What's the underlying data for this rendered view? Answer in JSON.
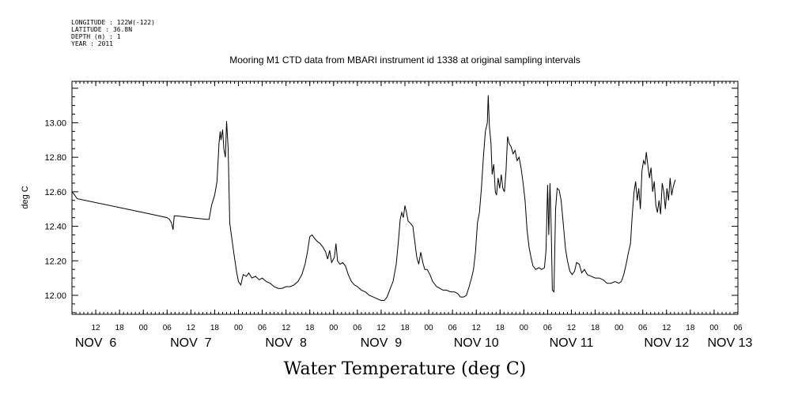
{
  "header_lines": [
    "LONGITUDE : 122W(-122)",
    "LATITUDE : 36.8N",
    "DEPTH (m) : 1",
    "YEAR : 2011"
  ],
  "chart_data": {
    "type": "line",
    "title": "Mooring M1 CTD data from MBARI instrument id 1338 at original sampling intervals",
    "xlabel": "Water Temperature (deg C)",
    "ylabel": "deg C",
    "x_unit": "hours since Nov 6 00:00 (2011)",
    "xlim": [
      6,
      174
    ],
    "ylim": [
      11.89,
      13.24
    ],
    "yticks": [
      12.0,
      12.2,
      12.4,
      12.6,
      12.8,
      13.0
    ],
    "ytick_labels": [
      "12.00",
      "12.20",
      "12.40",
      "12.60",
      "12.80",
      "13.00"
    ],
    "hour_ticks": [
      {
        "x": 12,
        "label": "12"
      },
      {
        "x": 18,
        "label": "18"
      },
      {
        "x": 24,
        "label": "00"
      },
      {
        "x": 30,
        "label": "06"
      },
      {
        "x": 36,
        "label": "12"
      },
      {
        "x": 42,
        "label": "18"
      },
      {
        "x": 48,
        "label": "00"
      },
      {
        "x": 54,
        "label": "06"
      },
      {
        "x": 60,
        "label": "12"
      },
      {
        "x": 66,
        "label": "18"
      },
      {
        "x": 72,
        "label": "00"
      },
      {
        "x": 78,
        "label": "06"
      },
      {
        "x": 84,
        "label": "12"
      },
      {
        "x": 90,
        "label": "18"
      },
      {
        "x": 96,
        "label": "00"
      },
      {
        "x": 102,
        "label": "06"
      },
      {
        "x": 108,
        "label": "12"
      },
      {
        "x": 114,
        "label": "18"
      },
      {
        "x": 120,
        "label": "00"
      },
      {
        "x": 126,
        "label": "06"
      },
      {
        "x": 132,
        "label": "12"
      },
      {
        "x": 138,
        "label": "18"
      },
      {
        "x": 144,
        "label": "00"
      },
      {
        "x": 150,
        "label": "06"
      },
      {
        "x": 156,
        "label": "12"
      },
      {
        "x": 162,
        "label": "18"
      },
      {
        "x": 168,
        "label": "00"
      },
      {
        "x": 174,
        "label": "06"
      }
    ],
    "day_labels": [
      {
        "x": 12,
        "label": "NOV  6"
      },
      {
        "x": 36,
        "label": "NOV  7"
      },
      {
        "x": 60,
        "label": "NOV  8"
      },
      {
        "x": 84,
        "label": "NOV  9"
      },
      {
        "x": 108,
        "label": "NOV 10"
      },
      {
        "x": 132,
        "label": "NOV 11"
      },
      {
        "x": 156,
        "label": "NOV 12"
      },
      {
        "x": 172,
        "label": "NOV 13"
      }
    ],
    "series": [
      {
        "color": "#000000",
        "points": [
          [
            6.0,
            12.6
          ],
          [
            6.4,
            12.59
          ],
          [
            7.3,
            12.56
          ],
          [
            24.0,
            12.48
          ],
          [
            30.0,
            12.45
          ],
          [
            30.6,
            12.44
          ],
          [
            31.1,
            12.42
          ],
          [
            31.5,
            12.38
          ],
          [
            31.8,
            12.46
          ],
          [
            32.5,
            12.46
          ],
          [
            36.0,
            12.45
          ],
          [
            40.0,
            12.44
          ],
          [
            40.6,
            12.44
          ],
          [
            41.2,
            12.52
          ],
          [
            42.0,
            12.58
          ],
          [
            42.6,
            12.66
          ],
          [
            43.1,
            12.88
          ],
          [
            43.4,
            12.95
          ],
          [
            43.6,
            12.9
          ],
          [
            44.0,
            12.96
          ],
          [
            44.3,
            12.85
          ],
          [
            44.7,
            12.8
          ],
          [
            45.0,
            13.01
          ],
          [
            45.4,
            12.85
          ],
          [
            45.8,
            12.42
          ],
          [
            46.2,
            12.35
          ],
          [
            46.8,
            12.25
          ],
          [
            47.5,
            12.14
          ],
          [
            48.0,
            12.08
          ],
          [
            48.6,
            12.06
          ],
          [
            49.2,
            12.12
          ],
          [
            50.0,
            12.11
          ],
          [
            50.6,
            12.13
          ],
          [
            51.4,
            12.1
          ],
          [
            52.3,
            12.11
          ],
          [
            53.2,
            12.09
          ],
          [
            54.0,
            12.1
          ],
          [
            55.0,
            12.08
          ],
          [
            56.0,
            12.07
          ],
          [
            57.0,
            12.05
          ],
          [
            58.0,
            12.04
          ],
          [
            59.0,
            12.04
          ],
          [
            60.0,
            12.05
          ],
          [
            61.0,
            12.05
          ],
          [
            62.0,
            12.06
          ],
          [
            63.0,
            12.08
          ],
          [
            64.0,
            12.12
          ],
          [
            64.8,
            12.18
          ],
          [
            65.4,
            12.25
          ],
          [
            66.0,
            12.34
          ],
          [
            66.6,
            12.35
          ],
          [
            67.2,
            12.33
          ],
          [
            68.0,
            12.31
          ],
          [
            68.6,
            12.3
          ],
          [
            69.3,
            12.28
          ],
          [
            70.0,
            12.25
          ],
          [
            70.5,
            12.21
          ],
          [
            71.0,
            12.26
          ],
          [
            71.5,
            12.19
          ],
          [
            72.2,
            12.22
          ],
          [
            72.6,
            12.3
          ],
          [
            73.0,
            12.2
          ],
          [
            73.6,
            12.18
          ],
          [
            74.3,
            12.19
          ],
          [
            75.0,
            12.17
          ],
          [
            75.7,
            12.12
          ],
          [
            76.5,
            12.08
          ],
          [
            77.3,
            12.06
          ],
          [
            78.0,
            12.05
          ],
          [
            79.0,
            12.03
          ],
          [
            80.0,
            12.02
          ],
          [
            81.0,
            12.0
          ],
          [
            82.0,
            11.99
          ],
          [
            83.0,
            11.98
          ],
          [
            84.0,
            11.97
          ],
          [
            84.8,
            11.97
          ],
          [
            85.5,
            11.99
          ],
          [
            86.3,
            12.04
          ],
          [
            87.0,
            12.08
          ],
          [
            87.8,
            12.18
          ],
          [
            88.3,
            12.3
          ],
          [
            88.8,
            12.44
          ],
          [
            89.2,
            12.48
          ],
          [
            89.6,
            12.45
          ],
          [
            90.0,
            12.52
          ],
          [
            90.4,
            12.48
          ],
          [
            90.8,
            12.43
          ],
          [
            91.3,
            12.42
          ],
          [
            92.0,
            12.4
          ],
          [
            92.5,
            12.31
          ],
          [
            93.0,
            12.22
          ],
          [
            93.5,
            12.18
          ],
          [
            94.0,
            12.25
          ],
          [
            94.5,
            12.19
          ],
          [
            95.0,
            12.15
          ],
          [
            95.6,
            12.15
          ],
          [
            96.3,
            12.12
          ],
          [
            97.0,
            12.08
          ],
          [
            98.0,
            12.05
          ],
          [
            98.8,
            12.04
          ],
          [
            99.6,
            12.03
          ],
          [
            100.5,
            12.03
          ],
          [
            101.5,
            12.02
          ],
          [
            102.5,
            12.02
          ],
          [
            103.3,
            12.01
          ],
          [
            104.0,
            11.99
          ],
          [
            104.8,
            11.99
          ],
          [
            105.5,
            12.0
          ],
          [
            106.2,
            12.05
          ],
          [
            106.8,
            12.1
          ],
          [
            107.3,
            12.15
          ],
          [
            107.8,
            12.25
          ],
          [
            108.3,
            12.42
          ],
          [
            108.8,
            12.48
          ],
          [
            109.3,
            12.62
          ],
          [
            109.8,
            12.8
          ],
          [
            110.3,
            12.95
          ],
          [
            110.8,
            13.0
          ],
          [
            111.0,
            13.16
          ],
          [
            111.3,
            12.98
          ],
          [
            111.7,
            12.88
          ],
          [
            112.0,
            12.7
          ],
          [
            112.4,
            12.76
          ],
          [
            112.8,
            12.6
          ],
          [
            113.1,
            12.58
          ],
          [
            113.5,
            12.68
          ],
          [
            113.9,
            12.62
          ],
          [
            114.3,
            12.7
          ],
          [
            114.7,
            12.62
          ],
          [
            115.1,
            12.6
          ],
          [
            115.5,
            12.72
          ],
          [
            115.9,
            12.92
          ],
          [
            116.3,
            12.88
          ],
          [
            116.8,
            12.86
          ],
          [
            117.3,
            12.82
          ],
          [
            117.8,
            12.84
          ],
          [
            118.3,
            12.78
          ],
          [
            118.8,
            12.8
          ],
          [
            119.3,
            12.74
          ],
          [
            119.8,
            12.65
          ],
          [
            120.3,
            12.55
          ],
          [
            120.8,
            12.38
          ],
          [
            121.3,
            12.28
          ],
          [
            121.8,
            12.22
          ],
          [
            122.3,
            12.17
          ],
          [
            123.0,
            12.15
          ],
          [
            123.8,
            12.16
          ],
          [
            124.5,
            12.15
          ],
          [
            125.2,
            12.16
          ],
          [
            125.6,
            12.26
          ],
          [
            126.0,
            12.64
          ],
          [
            126.3,
            12.35
          ],
          [
            126.6,
            12.65
          ],
          [
            126.9,
            12.4
          ],
          [
            127.2,
            12.03
          ],
          [
            127.6,
            12.02
          ],
          [
            128.0,
            12.5
          ],
          [
            128.4,
            12.62
          ],
          [
            128.9,
            12.61
          ],
          [
            129.4,
            12.55
          ],
          [
            130.0,
            12.4
          ],
          [
            130.5,
            12.27
          ],
          [
            131.0,
            12.2
          ],
          [
            131.6,
            12.14
          ],
          [
            132.2,
            12.12
          ],
          [
            132.8,
            12.14
          ],
          [
            133.3,
            12.19
          ],
          [
            134.0,
            12.18
          ],
          [
            134.6,
            12.13
          ],
          [
            135.3,
            12.15
          ],
          [
            136.0,
            12.12
          ],
          [
            137.0,
            12.11
          ],
          [
            138.0,
            12.1
          ],
          [
            139.0,
            12.1
          ],
          [
            140.0,
            12.09
          ],
          [
            141.0,
            12.07
          ],
          [
            142.0,
            12.07
          ],
          [
            143.0,
            12.08
          ],
          [
            144.0,
            12.07
          ],
          [
            144.6,
            12.08
          ],
          [
            145.2,
            12.12
          ],
          [
            145.8,
            12.18
          ],
          [
            146.4,
            12.25
          ],
          [
            146.9,
            12.3
          ],
          [
            147.3,
            12.45
          ],
          [
            147.8,
            12.6
          ],
          [
            148.2,
            12.66
          ],
          [
            148.6,
            12.55
          ],
          [
            149.0,
            12.62
          ],
          [
            149.4,
            12.5
          ],
          [
            149.8,
            12.72
          ],
          [
            150.2,
            12.78
          ],
          [
            150.6,
            12.76
          ],
          [
            150.9,
            12.83
          ],
          [
            151.3,
            12.75
          ],
          [
            151.7,
            12.68
          ],
          [
            152.1,
            12.74
          ],
          [
            152.5,
            12.6
          ],
          [
            152.9,
            12.66
          ],
          [
            153.3,
            12.52
          ],
          [
            153.7,
            12.48
          ],
          [
            154.1,
            12.55
          ],
          [
            154.5,
            12.47
          ],
          [
            154.9,
            12.65
          ],
          [
            155.3,
            12.6
          ],
          [
            155.7,
            12.5
          ],
          [
            156.1,
            12.62
          ],
          [
            156.5,
            12.55
          ],
          [
            156.9,
            12.68
          ],
          [
            157.3,
            12.58
          ],
          [
            157.7,
            12.63
          ],
          [
            158.2,
            12.67
          ]
        ]
      }
    ]
  }
}
